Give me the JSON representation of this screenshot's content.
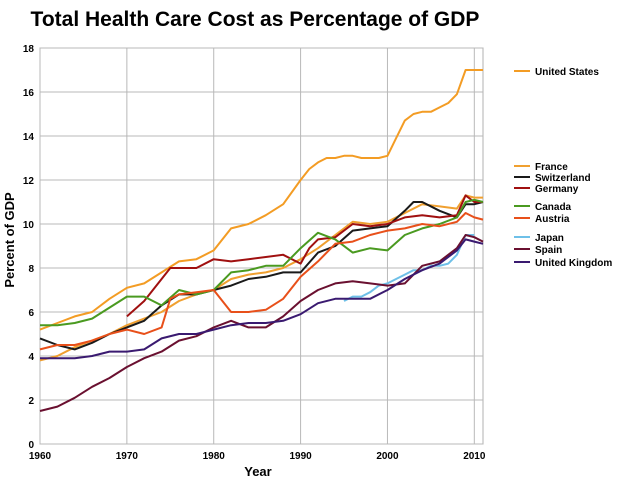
{
  "chart_data": {
    "type": "line",
    "title": "Total Health Care Cost as Percentage of GDP",
    "xlabel": "Year",
    "ylabel": "Percent of GDP",
    "xlim": [
      1960,
      2011
    ],
    "ylim": [
      0,
      18
    ],
    "x_ticks": [
      1960,
      1970,
      1980,
      1990,
      2000,
      2010
    ],
    "y_ticks": [
      0,
      2,
      4,
      6,
      8,
      10,
      12,
      14,
      16,
      18
    ],
    "grid": "major x and y",
    "legend": "right",
    "series": [
      {
        "name": "United States",
        "color": "#f39c24",
        "x": [
          1960,
          1962,
          1964,
          1966,
          1968,
          1970,
          1972,
          1974,
          1976,
          1978,
          1980,
          1982,
          1984,
          1986,
          1988,
          1990,
          1991,
          1992,
          1993,
          1994,
          1995,
          1996,
          1997,
          1998,
          1999,
          2000,
          2001,
          2002,
          2003,
          2004,
          2005,
          2006,
          2007,
          2008,
          2009,
          2010,
          2011
        ],
        "y": [
          5.2,
          5.5,
          5.8,
          6.0,
          6.6,
          7.1,
          7.3,
          7.8,
          8.3,
          8.4,
          8.8,
          9.8,
          10.0,
          10.4,
          10.9,
          12.0,
          12.5,
          12.8,
          13.0,
          13.0,
          13.1,
          13.1,
          13.0,
          13.0,
          13.0,
          13.1,
          13.9,
          14.7,
          15.0,
          15.1,
          15.1,
          15.3,
          15.5,
          15.9,
          17.0,
          17.0,
          17.0
        ]
      },
      {
        "name": "France",
        "color": "#f0a030",
        "x": [
          1960,
          1962,
          1964,
          1966,
          1968,
          1970,
          1972,
          1974,
          1976,
          1978,
          1980,
          1982,
          1984,
          1986,
          1988,
          1990,
          1992,
          1994,
          1996,
          1998,
          2000,
          2002,
          2004,
          2006,
          2008,
          2009,
          2010,
          2011
        ],
        "y": [
          3.8,
          4.0,
          4.4,
          4.7,
          5.0,
          5.4,
          5.7,
          6.0,
          6.5,
          6.8,
          7.0,
          7.5,
          7.7,
          7.8,
          8.0,
          8.4,
          8.9,
          9.5,
          10.1,
          10.0,
          10.1,
          10.5,
          10.9,
          10.8,
          10.7,
          11.3,
          11.2,
          11.2
        ]
      },
      {
        "name": "Switzerland",
        "color": "#1a1a1a",
        "x": [
          1960,
          1962,
          1964,
          1966,
          1968,
          1970,
          1972,
          1974,
          1976,
          1978,
          1980,
          1982,
          1984,
          1986,
          1988,
          1990,
          1992,
          1994,
          1996,
          1998,
          2000,
          2002,
          2003,
          2004,
          2006,
          2008,
          2009,
          2010,
          2011
        ],
        "y": [
          4.8,
          4.5,
          4.3,
          4.6,
          5.0,
          5.3,
          5.6,
          6.3,
          6.8,
          6.8,
          7.0,
          7.2,
          7.5,
          7.6,
          7.8,
          7.8,
          8.7,
          9.0,
          9.7,
          9.8,
          9.9,
          10.6,
          11.0,
          11.0,
          10.6,
          10.3,
          10.9,
          10.9,
          11.0
        ]
      },
      {
        "name": "Germany",
        "color": "#a01010",
        "x": [
          1970,
          1972,
          1974,
          1975,
          1976,
          1978,
          1980,
          1982,
          1984,
          1986,
          1988,
          1990,
          1991,
          1992,
          1994,
          1996,
          1998,
          2000,
          2002,
          2004,
          2006,
          2008,
          2009,
          2010,
          2011
        ],
        "y": [
          5.8,
          6.5,
          7.5,
          8.0,
          8.0,
          8.0,
          8.4,
          8.3,
          8.4,
          8.5,
          8.6,
          8.2,
          8.9,
          9.3,
          9.4,
          10.0,
          9.9,
          10.0,
          10.3,
          10.4,
          10.3,
          10.4,
          11.3,
          11.0,
          11.0
        ]
      },
      {
        "name": "Canada",
        "color": "#4a9a20",
        "x": [
          1960,
          1962,
          1964,
          1966,
          1968,
          1970,
          1972,
          1974,
          1976,
          1978,
          1980,
          1982,
          1984,
          1986,
          1988,
          1990,
          1992,
          1994,
          1996,
          1998,
          2000,
          2002,
          2004,
          2006,
          2008,
          2009,
          2010,
          2011
        ],
        "y": [
          5.4,
          5.4,
          5.5,
          5.7,
          6.2,
          6.7,
          6.7,
          6.3,
          7.0,
          6.8,
          7.0,
          7.8,
          7.9,
          8.1,
          8.1,
          8.9,
          9.6,
          9.3,
          8.7,
          8.9,
          8.8,
          9.5,
          9.8,
          10.0,
          10.3,
          11.0,
          11.1,
          11.0
        ]
      },
      {
        "name": "Austria",
        "color": "#e8501a",
        "x": [
          1960,
          1962,
          1964,
          1966,
          1968,
          1970,
          1972,
          1974,
          1975,
          1976,
          1978,
          1980,
          1982,
          1984,
          1986,
          1988,
          1990,
          1992,
          1994,
          1996,
          1998,
          2000,
          2002,
          2004,
          2006,
          2008,
          2009,
          2010,
          2011
        ],
        "y": [
          4.3,
          4.5,
          4.5,
          4.7,
          5.0,
          5.2,
          5.0,
          5.3,
          6.6,
          6.8,
          6.9,
          7.0,
          6.0,
          6.0,
          6.1,
          6.6,
          7.6,
          8.3,
          9.1,
          9.2,
          9.5,
          9.7,
          9.8,
          10.0,
          9.9,
          10.1,
          10.5,
          10.3,
          10.2
        ]
      },
      {
        "name": "Japan",
        "color": "#6ec0e8",
        "x": [
          1995,
          1996,
          1997,
          1998,
          1999,
          2000,
          2001,
          2002,
          2003,
          2004,
          2005,
          2006,
          2007,
          2008,
          2009,
          2010
        ],
        "y": [
          6.5,
          6.7,
          6.7,
          6.9,
          7.2,
          7.3,
          7.5,
          7.7,
          7.9,
          7.9,
          8.1,
          8.1,
          8.2,
          8.6,
          9.5,
          9.5
        ]
      },
      {
        "name": "Spain",
        "color": "#6a1030",
        "x": [
          1960,
          1962,
          1964,
          1966,
          1968,
          1970,
          1972,
          1974,
          1976,
          1978,
          1980,
          1982,
          1984,
          1986,
          1988,
          1990,
          1992,
          1994,
          1996,
          1998,
          2000,
          2002,
          2004,
          2006,
          2008,
          2009,
          2010,
          2011
        ],
        "y": [
          1.5,
          1.7,
          2.1,
          2.6,
          3.0,
          3.5,
          3.9,
          4.2,
          4.7,
          4.9,
          5.3,
          5.6,
          5.3,
          5.3,
          5.8,
          6.5,
          7.0,
          7.3,
          7.4,
          7.3,
          7.2,
          7.3,
          8.1,
          8.3,
          8.9,
          9.5,
          9.4,
          9.2
        ]
      },
      {
        "name": "United Kingdom",
        "color": "#3a1a70",
        "x": [
          1960,
          1962,
          1964,
          1966,
          1968,
          1970,
          1972,
          1974,
          1976,
          1978,
          1980,
          1982,
          1984,
          1986,
          1988,
          1990,
          1992,
          1994,
          1996,
          1998,
          2000,
          2002,
          2004,
          2006,
          2008,
          2009,
          2010,
          2011
        ],
        "y": [
          3.9,
          3.9,
          3.9,
          4.0,
          4.2,
          4.2,
          4.3,
          4.8,
          5.0,
          5.0,
          5.2,
          5.4,
          5.5,
          5.5,
          5.6,
          5.9,
          6.4,
          6.6,
          6.6,
          6.6,
          7.0,
          7.5,
          7.9,
          8.2,
          8.8,
          9.3,
          9.2,
          9.1
        ]
      }
    ]
  }
}
